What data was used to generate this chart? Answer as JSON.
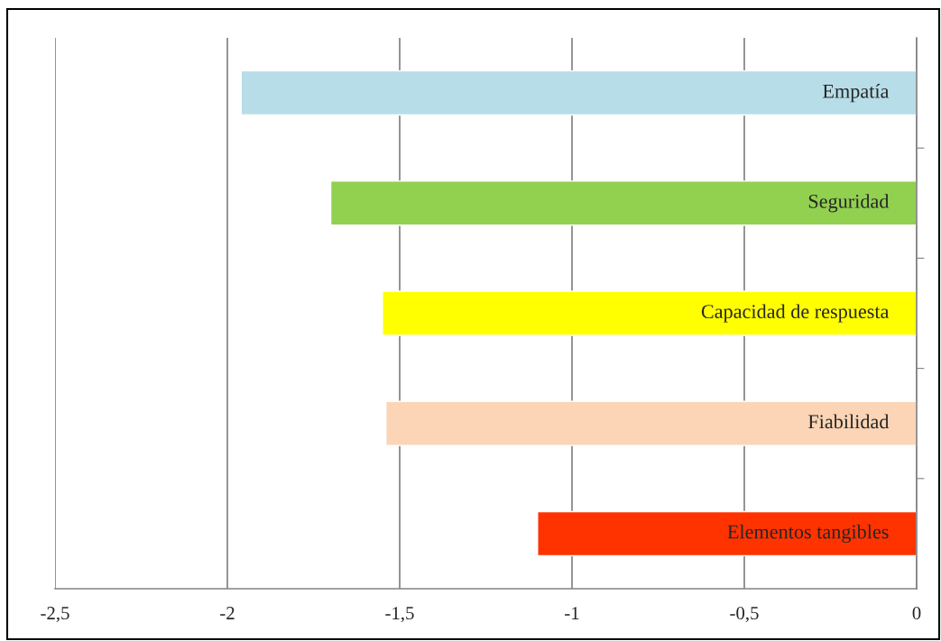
{
  "chart_data": {
    "type": "bar",
    "orientation": "horizontal",
    "categories": [
      "Empatía",
      "Seguridad",
      "Capacidad de respuesta",
      "Fiabilidad",
      "Elementos tangibles"
    ],
    "values": [
      -1.96,
      -1.7,
      -1.55,
      -1.54,
      -1.1
    ],
    "colors": [
      "#b7dde8",
      "#92d050",
      "#ffff00",
      "#fbd5b5",
      "#ff3300"
    ],
    "xlim": [
      -2.5,
      0
    ],
    "xticks": [
      {
        "value": -2.5,
        "label": "-2,5"
      },
      {
        "value": -2,
        "label": "-2"
      },
      {
        "value": -1.5,
        "label": "-1,5"
      },
      {
        "value": -1,
        "label": "-1"
      },
      {
        "value": -0.5,
        "label": "-0,5"
      },
      {
        "value": 0,
        "label": "0"
      }
    ],
    "grid": "x",
    "legend": false
  }
}
